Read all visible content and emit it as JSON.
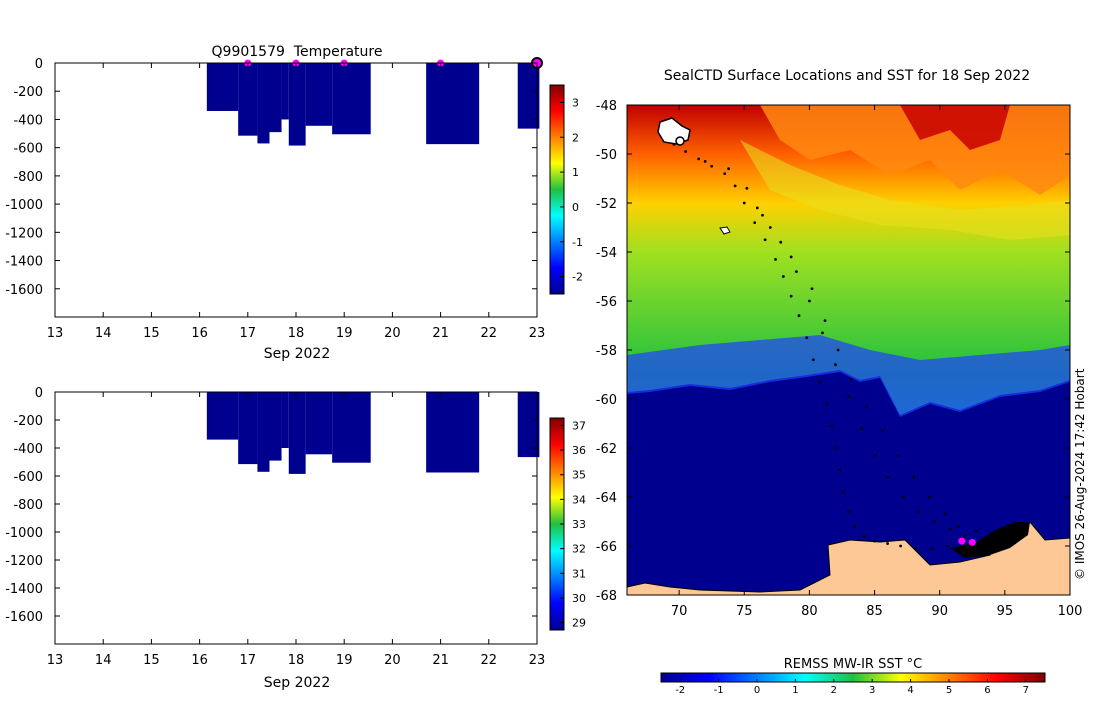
{
  "chart_data": [
    {
      "type": "heatmap",
      "title": "Q9901579  Temperature",
      "xlabel": "Sep 2022",
      "xlim": [
        13,
        23
      ],
      "ylim": [
        -1800,
        0
      ],
      "x_ticks": [
        13,
        14,
        15,
        16,
        17,
        18,
        19,
        20,
        21,
        22,
        23
      ],
      "y_ticks": [
        0,
        -200,
        -400,
        -600,
        -800,
        -1000,
        -1200,
        -1400,
        -1600
      ],
      "grid": false,
      "colorbar": {
        "min": -2.5,
        "max": 3.5,
        "ticks": [
          3,
          2,
          1,
          0,
          -1,
          -2
        ]
      },
      "profile_columns": [
        {
          "x0": 16.15,
          "x1": 16.8,
          "depth": -340
        },
        {
          "x0": 16.8,
          "x1": 17.2,
          "depth": -515
        },
        {
          "x0": 17.2,
          "x1": 17.45,
          "depth": -570
        },
        {
          "x0": 17.45,
          "x1": 17.7,
          "depth": -490
        },
        {
          "x0": 17.7,
          "x1": 17.85,
          "depth": -400
        },
        {
          "x0": 17.85,
          "x1": 18.2,
          "depth": -585
        },
        {
          "x0": 18.2,
          "x1": 18.75,
          "depth": -445
        },
        {
          "x0": 18.75,
          "x1": 19.55,
          "depth": -505
        },
        {
          "x0": 20.7,
          "x1": 21.8,
          "depth": -575
        },
        {
          "x0": 22.6,
          "x1": 23.05,
          "depth": -465
        }
      ],
      "markers_x": [
        17.0,
        18.0,
        19.0,
        21.0
      ],
      "last_location_x": 23.0
    },
    {
      "type": "heatmap",
      "xlabel": "Sep 2022",
      "xlim": [
        13,
        23
      ],
      "ylim": [
        -1800,
        0
      ],
      "x_ticks": [
        13,
        14,
        15,
        16,
        17,
        18,
        19,
        20,
        21,
        22,
        23
      ],
      "y_ticks": [
        0,
        -200,
        -400,
        -600,
        -800,
        -1000,
        -1200,
        -1400,
        -1600
      ],
      "grid": false,
      "colorbar": {
        "min": 28.7,
        "max": 37.3,
        "ticks": [
          37,
          36,
          35,
          34,
          33,
          32,
          31,
          30,
          29
        ]
      },
      "profile_columns": [
        {
          "x0": 16.15,
          "x1": 16.8,
          "depth": -340
        },
        {
          "x0": 16.8,
          "x1": 17.2,
          "depth": -515
        },
        {
          "x0": 17.2,
          "x1": 17.45,
          "depth": -570
        },
        {
          "x0": 17.45,
          "x1": 17.7,
          "depth": -490
        },
        {
          "x0": 17.7,
          "x1": 17.85,
          "depth": -400
        },
        {
          "x0": 17.85,
          "x1": 18.2,
          "depth": -585
        },
        {
          "x0": 18.2,
          "x1": 18.75,
          "depth": -445
        },
        {
          "x0": 18.75,
          "x1": 19.55,
          "depth": -505
        },
        {
          "x0": 20.7,
          "x1": 21.8,
          "depth": -575
        },
        {
          "x0": 22.6,
          "x1": 23.05,
          "depth": -465
        }
      ]
    },
    {
      "type": "heatmap",
      "title": "SealCTD Surface Locations and SST for 18 Sep 2022",
      "xlim": [
        66,
        100
      ],
      "ylim": [
        -68,
        -48
      ],
      "x_ticks": [
        70,
        75,
        80,
        85,
        90,
        95,
        100
      ],
      "y_ticks": [
        -48,
        -50,
        -52,
        -54,
        -56,
        -58,
        -60,
        -62,
        -64,
        -66,
        -68
      ],
      "grid": false,
      "colorbar": {
        "label": "REMSS MW-IR SST °C",
        "min": -2.5,
        "max": 7.5,
        "ticks": [
          -2,
          -1,
          0,
          1,
          2,
          3,
          4,
          5,
          6,
          7
        ]
      },
      "track_points": [
        [
          68.8,
          -49.4
        ],
        [
          69.6,
          -49.6
        ],
        [
          70.5,
          -49.9
        ],
        [
          71.5,
          -50.2
        ],
        [
          72.5,
          -50.5
        ],
        [
          73.5,
          -50.8
        ],
        [
          74.3,
          -51.3
        ],
        [
          75.0,
          -52.0
        ],
        [
          75.8,
          -52.8
        ],
        [
          76.6,
          -53.5
        ],
        [
          77.4,
          -54.3
        ],
        [
          78.0,
          -55.0
        ],
        [
          78.6,
          -55.8
        ],
        [
          79.2,
          -56.6
        ],
        [
          79.8,
          -57.5
        ],
        [
          80.3,
          -58.4
        ],
        [
          80.8,
          -59.3
        ],
        [
          81.3,
          -60.2
        ],
        [
          81.7,
          -61.1
        ],
        [
          82.0,
          -62.0
        ],
        [
          82.3,
          -62.9
        ],
        [
          82.6,
          -63.8
        ],
        [
          83.0,
          -64.6
        ],
        [
          83.5,
          -65.2
        ],
        [
          84.2,
          -65.6
        ],
        [
          85.0,
          -65.8
        ],
        [
          86.0,
          -65.9
        ],
        [
          87.0,
          -66.0
        ],
        [
          88.2,
          -66.1
        ],
        [
          89.4,
          -66.1
        ],
        [
          90.6,
          -66.0
        ],
        [
          91.8,
          -65.9
        ],
        [
          72.0,
          -50.3
        ],
        [
          73.8,
          -50.6
        ],
        [
          75.2,
          -51.4
        ],
        [
          76.4,
          -52.5
        ],
        [
          77.8,
          -53.6
        ],
        [
          79.0,
          -54.8
        ],
        [
          80.0,
          -56.0
        ],
        [
          81.0,
          -57.3
        ],
        [
          82.0,
          -58.6
        ],
        [
          83.0,
          -59.9
        ],
        [
          84.0,
          -61.2
        ],
        [
          85.0,
          -62.3
        ],
        [
          86.0,
          -63.2
        ],
        [
          87.2,
          -64.0
        ],
        [
          88.4,
          -64.6
        ],
        [
          89.6,
          -65.0
        ],
        [
          90.8,
          -65.3
        ],
        [
          92.0,
          -65.6
        ],
        [
          93.2,
          -65.9
        ],
        [
          94.2,
          -66.0
        ],
        [
          76.0,
          -52.2
        ],
        [
          77.0,
          -53.0
        ],
        [
          78.6,
          -54.2
        ],
        [
          80.2,
          -55.5
        ],
        [
          81.2,
          -56.8
        ],
        [
          82.2,
          -58.0
        ],
        [
          83.2,
          -59.2
        ],
        [
          84.4,
          -60.3
        ],
        [
          85.6,
          -61.3
        ],
        [
          86.8,
          -62.3
        ],
        [
          88.0,
          -63.2
        ],
        [
          89.2,
          -64.0
        ],
        [
          90.4,
          -64.7
        ],
        [
          91.4,
          -65.2
        ],
        [
          92.8,
          -65.4
        ]
      ],
      "latest_positions": [
        [
          91.7,
          -65.8
        ],
        [
          92.5,
          -65.85
        ]
      ],
      "land_label": "",
      "colors": {
        "land": "#fec896",
        "track": "#000000",
        "marker": "#ff00ff"
      }
    }
  ],
  "figure": {
    "stamp": "© IMOS 26-Aug-2024 17:42 Hobart",
    "profile_fill": "#00008f"
  }
}
